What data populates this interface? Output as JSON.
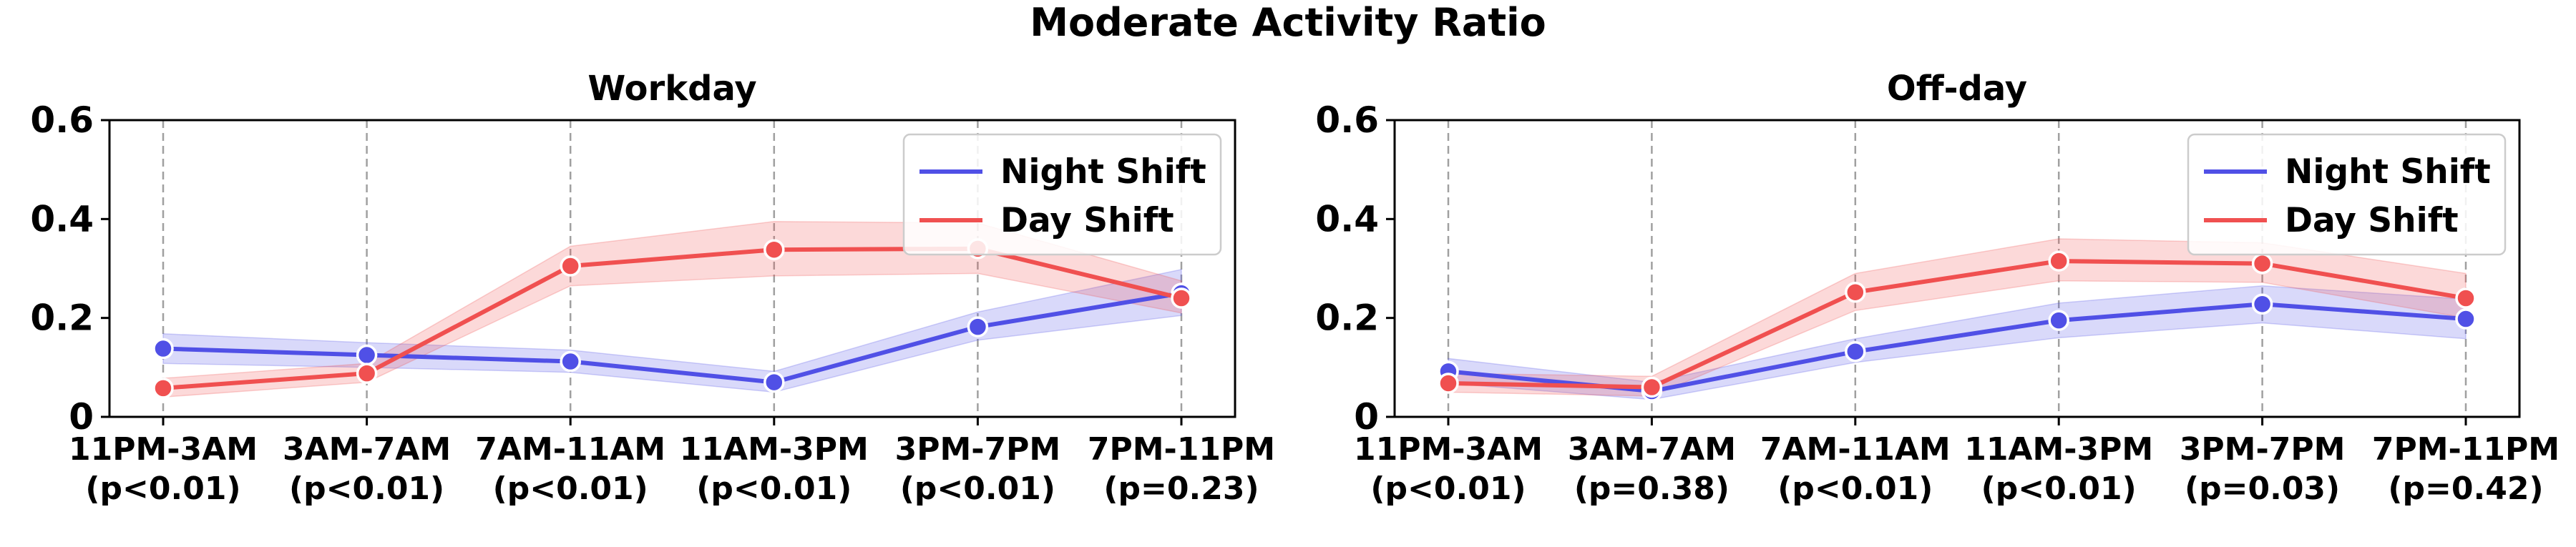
{
  "figure": {
    "title": "Moderate Activity Ratio"
  },
  "chart_data": [
    {
      "type": "line",
      "title": "Workday",
      "xlabel": "",
      "ylabel": "",
      "categories": [
        "11PM-3AM",
        "3AM-7AM",
        "7AM-11AM",
        "11AM-3PM",
        "3PM-7PM",
        "7PM-11PM"
      ],
      "pvalues": [
        "(p<0.01)",
        "(p<0.01)",
        "(p<0.01)",
        "(p<0.01)",
        "(p<0.01)",
        "(p=0.23)"
      ],
      "ylim": [
        0,
        0.6
      ],
      "yticks": [
        0,
        0.2,
        0.4,
        0.6
      ],
      "ytick_labels": [
        "0",
        "0.2",
        "0.4",
        "0.6"
      ],
      "grid": "vertical dashed",
      "legend_position": "top-right",
      "series": [
        {
          "name": "Night Shift",
          "color": "#5050e6",
          "values": [
            0.138,
            0.125,
            0.112,
            0.07,
            0.182,
            0.25
          ],
          "lower": [
            0.108,
            0.1,
            0.09,
            0.05,
            0.155,
            0.205
          ],
          "upper": [
            0.168,
            0.15,
            0.135,
            0.092,
            0.212,
            0.298
          ]
        },
        {
          "name": "Day Shift",
          "color": "#f05050",
          "values": [
            0.058,
            0.088,
            0.305,
            0.338,
            0.34,
            0.24
          ],
          "lower": [
            0.04,
            0.07,
            0.265,
            0.285,
            0.29,
            0.21
          ],
          "upper": [
            0.078,
            0.108,
            0.345,
            0.395,
            0.392,
            0.275
          ]
        }
      ]
    },
    {
      "type": "line",
      "title": "Off-day",
      "xlabel": "",
      "ylabel": "",
      "categories": [
        "11PM-3AM",
        "3AM-7AM",
        "7AM-11AM",
        "11AM-3PM",
        "3PM-7PM",
        "7PM-11PM"
      ],
      "pvalues": [
        "(p<0.01)",
        "(p=0.38)",
        "(p<0.01)",
        "(p<0.01)",
        "(p=0.03)",
        "(p=0.42)"
      ],
      "ylim": [
        0,
        0.6
      ],
      "yticks": [
        0,
        0.2,
        0.4,
        0.6
      ],
      "ytick_labels": [
        "0",
        "0.2",
        "0.4",
        "0.6"
      ],
      "grid": "vertical dashed",
      "legend_position": "top-right",
      "series": [
        {
          "name": "Night Shift",
          "color": "#5050e6",
          "values": [
            0.092,
            0.052,
            0.132,
            0.195,
            0.228,
            0.198
          ],
          "lower": [
            0.068,
            0.035,
            0.11,
            0.16,
            0.19,
            0.158
          ],
          "upper": [
            0.118,
            0.07,
            0.158,
            0.23,
            0.265,
            0.238
          ]
        },
        {
          "name": "Day Shift",
          "color": "#f05050",
          "values": [
            0.068,
            0.06,
            0.252,
            0.315,
            0.31,
            0.24
          ],
          "lower": [
            0.05,
            0.042,
            0.215,
            0.275,
            0.272,
            0.2
          ],
          "upper": [
            0.088,
            0.082,
            0.29,
            0.36,
            0.352,
            0.29
          ]
        }
      ]
    }
  ]
}
